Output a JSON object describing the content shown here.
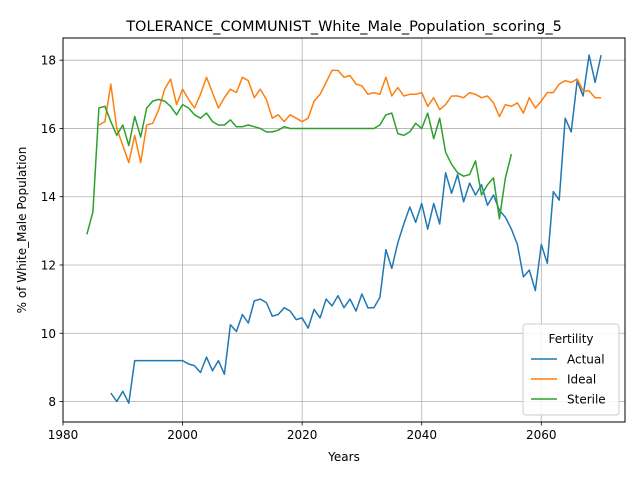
{
  "chart_data": {
    "type": "line",
    "title": "TOLERANCE_COMMUNIST_White_Male_Population_scoring_5",
    "xlabel": "Years",
    "ylabel": "% of White_Male Population",
    "xlim": [
      1980,
      2074
    ],
    "ylim": [
      7.4,
      18.65
    ],
    "xticks": [
      1980,
      2000,
      2020,
      2040,
      2060
    ],
    "yticks": [
      8,
      10,
      12,
      14,
      16,
      18
    ],
    "grid": true,
    "legend": {
      "title": "Fertility",
      "position": "lower right"
    },
    "series": [
      {
        "name": "Actual",
        "color": "#1f77b4",
        "x": [
          1988,
          1989,
          1990,
          1991,
          1992,
          1993,
          1994,
          1995,
          1996,
          1997,
          1998,
          1999,
          2000,
          2001,
          2002,
          2003,
          2004,
          2005,
          2006,
          2007,
          2008,
          2009,
          2010,
          2011,
          2012,
          2013,
          2014,
          2015,
          2016,
          2017,
          2018,
          2019,
          2020,
          2021,
          2022,
          2023,
          2024,
          2025,
          2026,
          2027,
          2028,
          2029,
          2030,
          2031,
          2032,
          2033,
          2034,
          2035,
          2036,
          2037,
          2038,
          2039,
          2040,
          2041,
          2042,
          2043,
          2044,
          2045,
          2046,
          2047,
          2048,
          2049,
          2050,
          2051,
          2052,
          2053,
          2054,
          2055,
          2056,
          2057,
          2058,
          2059,
          2060,
          2061,
          2062,
          2063,
          2064,
          2065,
          2066,
          2067,
          2068,
          2069,
          2070
        ],
        "values": [
          8.25,
          8.0,
          8.3,
          7.95,
          9.2,
          9.2,
          9.2,
          9.2,
          9.2,
          9.2,
          9.2,
          9.2,
          9.2,
          9.1,
          9.05,
          8.85,
          9.3,
          8.9,
          9.2,
          8.8,
          10.25,
          10.05,
          10.55,
          10.3,
          10.95,
          11.0,
          10.9,
          10.5,
          10.55,
          10.75,
          10.65,
          10.4,
          10.45,
          10.15,
          10.7,
          10.45,
          11.0,
          10.8,
          11.1,
          10.75,
          11.0,
          10.65,
          11.15,
          10.75,
          10.75,
          11.05,
          12.45,
          11.9,
          12.65,
          13.2,
          13.7,
          13.25,
          13.8,
          13.05,
          13.8,
          13.2,
          14.7,
          14.1,
          14.65,
          13.85,
          14.4,
          14.05,
          14.35,
          13.75,
          14.05,
          13.6,
          13.4,
          13.05,
          12.6,
          11.65,
          11.85,
          11.25,
          12.6,
          12.05,
          14.15,
          13.9,
          16.3,
          15.9,
          17.4,
          16.95,
          18.15,
          17.35,
          18.15
        ]
      },
      {
        "name": "Ideal",
        "color": "#ff7f0e",
        "x": [
          1986,
          1987,
          1988,
          1989,
          1990,
          1991,
          1992,
          1993,
          1994,
          1995,
          1996,
          1997,
          1998,
          1999,
          2000,
          2001,
          2002,
          2003,
          2004,
          2005,
          2006,
          2007,
          2008,
          2009,
          2010,
          2011,
          2012,
          2013,
          2014,
          2015,
          2016,
          2017,
          2018,
          2019,
          2020,
          2021,
          2022,
          2023,
          2024,
          2025,
          2026,
          2027,
          2028,
          2029,
          2030,
          2031,
          2032,
          2033,
          2034,
          2035,
          2036,
          2037,
          2038,
          2039,
          2040,
          2041,
          2042,
          2043,
          2044,
          2045,
          2046,
          2047,
          2048,
          2049,
          2050,
          2051,
          2052,
          2053,
          2054,
          2055,
          2056,
          2057,
          2058,
          2059,
          2060,
          2061,
          2062,
          2063,
          2064,
          2065,
          2066,
          2067,
          2068,
          2069,
          2070
        ],
        "values": [
          16.1,
          16.2,
          17.3,
          16.0,
          15.5,
          15.0,
          15.8,
          15.0,
          16.1,
          16.15,
          16.55,
          17.15,
          17.45,
          16.7,
          17.15,
          16.85,
          16.6,
          17.0,
          17.5,
          17.05,
          16.6,
          16.9,
          17.15,
          17.05,
          17.5,
          17.4,
          16.9,
          17.15,
          16.85,
          16.3,
          16.4,
          16.2,
          16.4,
          16.3,
          16.2,
          16.3,
          16.8,
          17.0,
          17.35,
          17.7,
          17.7,
          17.5,
          17.55,
          17.3,
          17.25,
          17.0,
          17.05,
          17.0,
          17.5,
          16.95,
          17.2,
          16.95,
          17.0,
          17.0,
          17.05,
          16.65,
          16.9,
          16.55,
          16.7,
          16.95,
          16.95,
          16.9,
          17.05,
          17.0,
          16.9,
          16.95,
          16.75,
          16.35,
          16.7,
          16.65,
          16.75,
          16.45,
          16.9,
          16.6,
          16.8,
          17.05,
          17.05,
          17.3,
          17.4,
          17.35,
          17.45,
          17.1,
          17.1,
          16.9,
          16.9
        ]
      },
      {
        "name": "Sterile",
        "color": "#2ca02c",
        "x": [
          1984,
          1985,
          1986,
          1987,
          1988,
          1989,
          1990,
          1991,
          1992,
          1993,
          1994,
          1995,
          1996,
          1997,
          1998,
          1999,
          2000,
          2001,
          2002,
          2003,
          2004,
          2005,
          2006,
          2007,
          2008,
          2009,
          2010,
          2011,
          2012,
          2013,
          2014,
          2015,
          2016,
          2017,
          2018,
          2019,
          2020,
          2021,
          2022,
          2023,
          2024,
          2025,
          2026,
          2027,
          2028,
          2029,
          2030,
          2031,
          2032,
          2033,
          2034,
          2035,
          2036,
          2037,
          2038,
          2039,
          2040,
          2041,
          2042,
          2043,
          2044,
          2045,
          2046,
          2047,
          2048,
          2049,
          2050,
          2051,
          2052,
          2053,
          2054,
          2055
        ],
        "values": [
          12.9,
          13.55,
          16.6,
          16.65,
          16.2,
          15.8,
          16.1,
          15.5,
          16.35,
          15.75,
          16.6,
          16.8,
          16.85,
          16.8,
          16.65,
          16.4,
          16.7,
          16.6,
          16.4,
          16.3,
          16.45,
          16.2,
          16.1,
          16.1,
          16.25,
          16.05,
          16.05,
          16.1,
          16.05,
          16.0,
          15.9,
          15.9,
          15.95,
          16.05,
          16.0,
          16.0,
          16.0,
          16.0,
          16.0,
          16.0,
          16.0,
          16.0,
          16.0,
          16.0,
          16.0,
          16.0,
          16.0,
          16.0,
          16.0,
          16.1,
          16.4,
          16.45,
          15.85,
          15.8,
          15.9,
          16.15,
          16.0,
          16.45,
          15.7,
          16.3,
          15.3,
          14.95,
          14.7,
          14.6,
          14.65,
          15.05,
          14.05,
          14.35,
          14.55,
          13.35,
          14.55,
          15.25
        ]
      }
    ]
  }
}
